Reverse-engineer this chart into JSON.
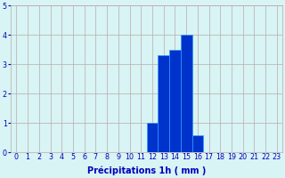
{
  "categories": [
    0,
    1,
    2,
    3,
    4,
    5,
    6,
    7,
    8,
    9,
    10,
    11,
    12,
    13,
    14,
    15,
    16,
    17,
    18,
    19,
    20,
    21,
    22,
    23
  ],
  "values": [
    0,
    0,
    0,
    0,
    0,
    0,
    0,
    0,
    0,
    0,
    0,
    0,
    1.0,
    3.3,
    3.5,
    4.0,
    0.6,
    0,
    0,
    0,
    0,
    0,
    0,
    0
  ],
  "bar_color": "#0033cc",
  "bar_edge_color": "#3399ff",
  "background_color": "#d8f4f4",
  "grid_color": "#bbaaaa",
  "xlabel": "Précipitations 1h ( mm )",
  "xlabel_color": "#0000bb",
  "tick_color": "#0000bb",
  "ylim": [
    0,
    5
  ],
  "yticks": [
    0,
    1,
    2,
    3,
    4,
    5
  ],
  "xlabel_fontsize": 7.0,
  "tick_fontsize": 5.8
}
